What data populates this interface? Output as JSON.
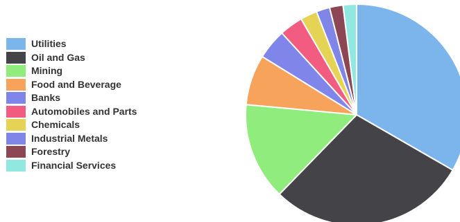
{
  "chart_data": {
    "type": "pie",
    "title": "",
    "legend_position": "left",
    "start_angle_deg": 0,
    "direction": "clockwise",
    "slices": [
      {
        "label": "Utilities",
        "value": 34.0,
        "color": "#7cb5ec"
      },
      {
        "label": "Oil and Gas",
        "value": 29.5,
        "color": "#434348"
      },
      {
        "label": "Mining",
        "value": 14.5,
        "color": "#90ed7d"
      },
      {
        "label": "Food and Beverage",
        "value": 7.5,
        "color": "#f7a35c"
      },
      {
        "label": "Banks",
        "value": 4.5,
        "color": "#8085e9"
      },
      {
        "label": "Automobiles and Parts",
        "value": 3.5,
        "color": "#f15c80"
      },
      {
        "label": "Chemicals",
        "value": 2.5,
        "color": "#e4d354"
      },
      {
        "label": "Industrial Metals",
        "value": 2.0,
        "color": "#8085e8"
      },
      {
        "label": "Forestry",
        "value": 2.0,
        "color": "#8d4653"
      },
      {
        "label": "Financial Services",
        "value": 0.0,
        "color": "#91e8e1"
      }
    ]
  }
}
